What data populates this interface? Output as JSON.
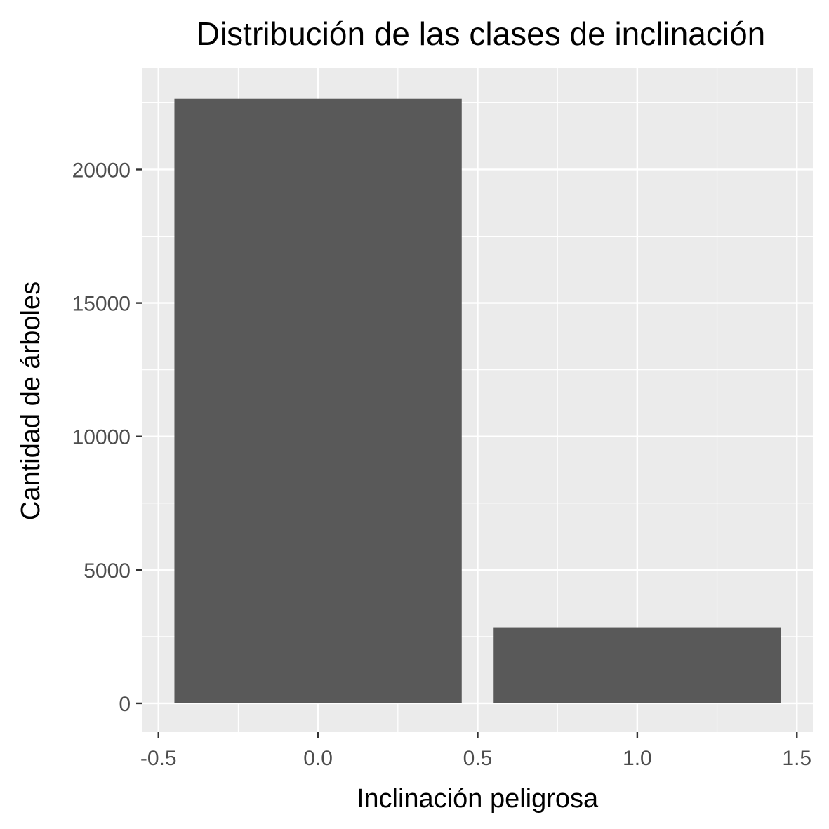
{
  "chart_data": {
    "type": "bar",
    "title": "Distribución de las clases de inclinación",
    "xlabel": "Inclinación peligrosa",
    "ylabel": "Cantidad de árboles",
    "bar_width": 0.9,
    "x": [
      0,
      1
    ],
    "values": [
      22650,
      2850
    ],
    "xlim": [
      -0.55,
      1.55
    ],
    "ylim": [
      -1080,
      23800
    ],
    "x_ticks": [
      -0.5,
      0.0,
      0.5,
      1.0,
      1.5
    ],
    "x_tick_labels": [
      "-0.5",
      "0.0",
      "0.5",
      "1.0",
      "1.5"
    ],
    "x_minor_ticks": [
      -0.25,
      0.25,
      0.75,
      1.25
    ],
    "y_ticks": [
      0,
      5000,
      10000,
      15000,
      20000
    ],
    "y_tick_labels": [
      "0",
      "5000",
      "10000",
      "15000",
      "20000"
    ],
    "y_minor_ticks": [
      2500,
      7500,
      12500,
      17500,
      22500
    ],
    "grid": true,
    "legend": "none",
    "colors": {
      "bar": "#595959",
      "panel": "#ebebeb",
      "grid": "#ffffff",
      "tick": "#333333"
    }
  }
}
